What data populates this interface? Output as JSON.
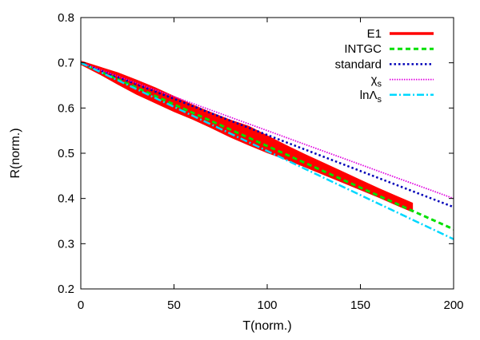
{
  "chart_data": {
    "type": "line",
    "title": "",
    "xlabel": "T(norm.)",
    "ylabel": "R(norm.)",
    "xlim": [
      0,
      200
    ],
    "ylim": [
      0.2,
      0.8
    ],
    "xticks": [
      0,
      50,
      100,
      150,
      200
    ],
    "yticks": [
      0.2,
      0.3,
      0.4,
      0.5,
      0.6,
      0.7,
      0.8
    ],
    "xtick_labels": [
      "0",
      "50",
      "100",
      "150",
      "200"
    ],
    "ytick_labels": [
      "0.2",
      "0.3",
      "0.4",
      "0.5",
      "0.6",
      "0.7",
      "0.8"
    ],
    "grid": false,
    "legend_position": "top-right",
    "series": [
      {
        "name": "E1",
        "color": "#ff0000",
        "style": "solid-band",
        "x": [
          0,
          10,
          20,
          30,
          40,
          50,
          60,
          70,
          80,
          90,
          100,
          110,
          120,
          130,
          140,
          150,
          160,
          170,
          178
        ],
        "y": [
          0.7,
          0.683,
          0.665,
          0.646,
          0.628,
          0.609,
          0.591,
          0.573,
          0.555,
          0.539,
          0.52,
          0.502,
          0.484,
          0.466,
          0.448,
          0.43,
          0.412,
          0.394,
          0.38
        ],
        "spread": [
          0.004,
          0.008,
          0.013,
          0.016,
          0.017,
          0.017,
          0.016,
          0.017,
          0.019,
          0.021,
          0.019,
          0.016,
          0.014,
          0.013,
          0.012,
          0.011,
          0.01,
          0.01,
          0.01
        ]
      },
      {
        "name": "INTGC",
        "color": "#00e000",
        "style": "dashed",
        "x": [
          0,
          200
        ],
        "y": [
          0.7,
          0.332
        ]
      },
      {
        "name": "standard",
        "color": "#0000b8",
        "style": "dotted",
        "x": [
          0,
          200
        ],
        "y": [
          0.7,
          0.381
        ]
      },
      {
        "name": "χs",
        "color": "#e000e0",
        "style": "fine-dotted",
        "x": [
          0,
          200
        ],
        "y": [
          0.7,
          0.4
        ]
      },
      {
        "name": "lnΛs",
        "color": "#00d8ff",
        "style": "dash-dot",
        "x": [
          0,
          200
        ],
        "y": [
          0.7,
          0.31
        ]
      }
    ]
  }
}
